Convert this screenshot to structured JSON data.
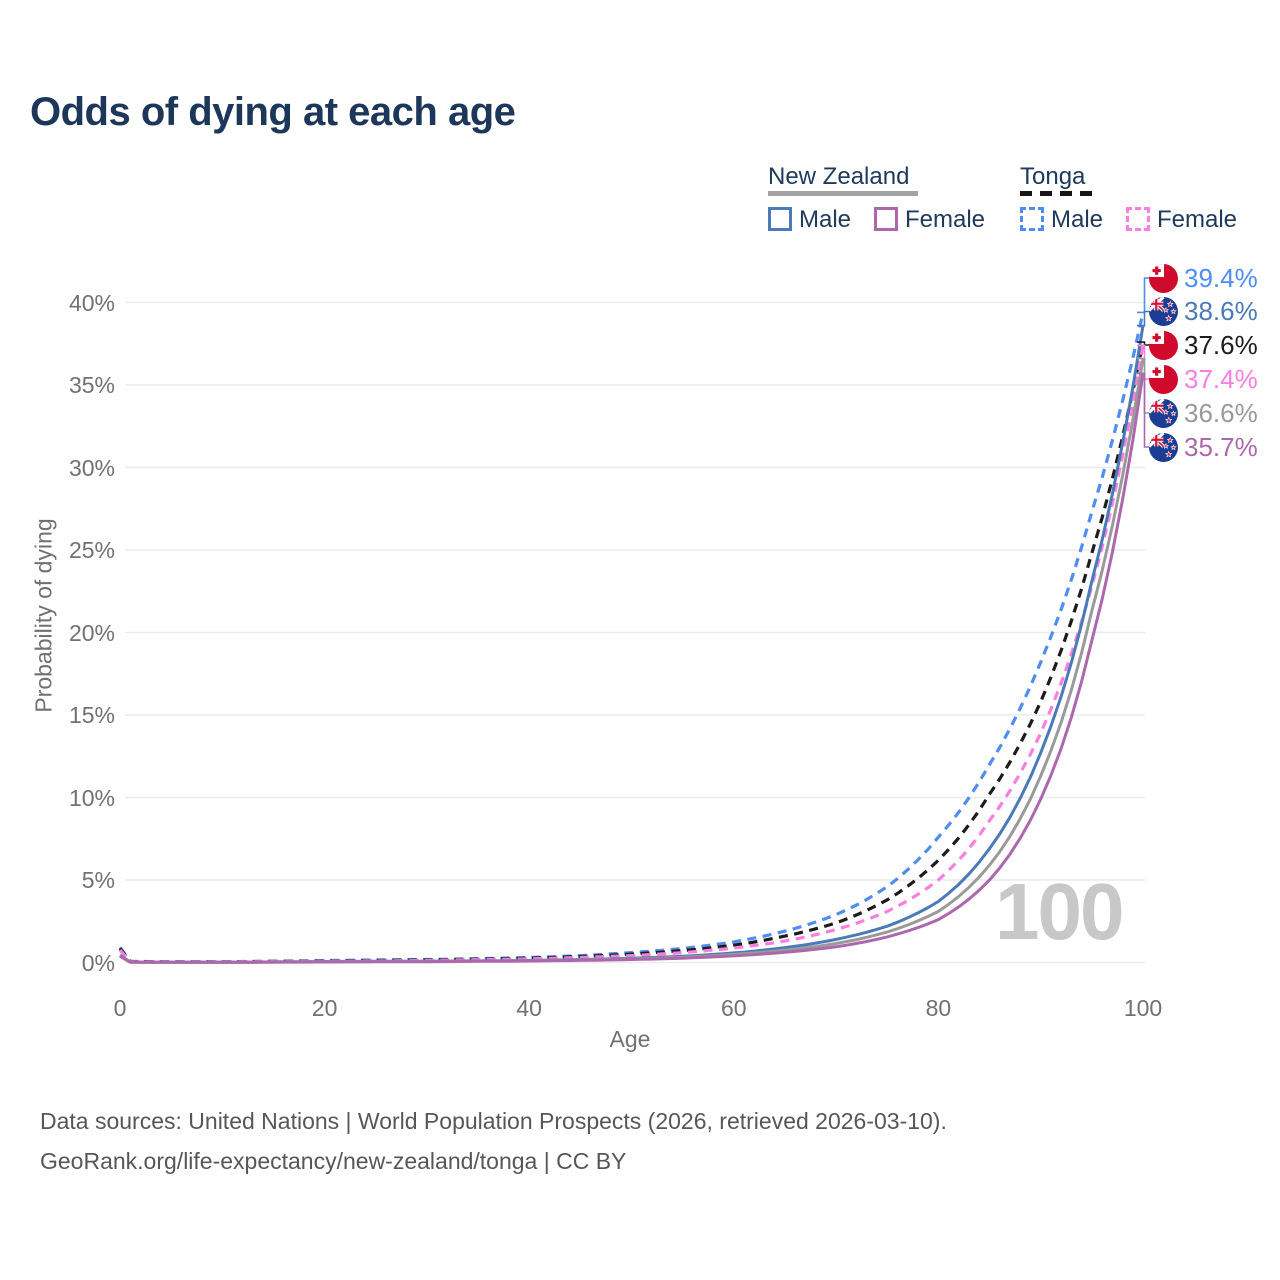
{
  "title": "Odds of dying at each age",
  "watermark": "100",
  "legend": {
    "groups": [
      {
        "name": "New Zealand",
        "line_style": "solid",
        "underline_color": "#a3a3a3",
        "items": [
          {
            "label": "Male",
            "color": "#4a7ab8"
          },
          {
            "label": "Female",
            "color": "#ad68ad"
          }
        ]
      },
      {
        "name": "Tonga",
        "line_style": "dashed",
        "underline_color": "#161616",
        "items": [
          {
            "label": "Male",
            "color": "#4f8df2"
          },
          {
            "label": "Female",
            "color": "#fc7ee0"
          }
        ]
      }
    ]
  },
  "footer": {
    "line1": "Data sources: United Nations | World Population Prospects (2026, retrieved 2026-03-10).",
    "line2": "GeoRank.org/life-expectancy/new-zealand/tonga | CC BY"
  },
  "chart_data": {
    "type": "line",
    "title": "Odds of dying at each age",
    "xlabel": "Age",
    "ylabel": "Probability of dying",
    "xlim": [
      0,
      100
    ],
    "ylim_percent": [
      0,
      40.5
    ],
    "x_ticks": [
      0,
      20,
      40,
      60,
      80,
      100
    ],
    "y_ticks_percent": [
      0,
      5,
      10,
      15,
      20,
      25,
      30,
      35,
      40
    ],
    "grid": "horizontal",
    "legend_position": "top-right",
    "ages": [
      0,
      1,
      5,
      10,
      15,
      20,
      25,
      30,
      35,
      40,
      45,
      50,
      55,
      60,
      65,
      70,
      75,
      80,
      85,
      90,
      95,
      100
    ],
    "series": [
      {
        "id": "tonga-male",
        "name": "Tonga Male",
        "country": "Tonga",
        "sex": "Male",
        "flag": "tonga",
        "color": "#4f8df2",
        "line_style": "dashed",
        "end_label": "39.4%",
        "end_value_percent": 39.4,
        "values_percent": [
          0.92,
          0.07,
          0.04,
          0.05,
          0.08,
          0.12,
          0.15,
          0.18,
          0.23,
          0.3,
          0.42,
          0.6,
          0.85,
          1.25,
          1.9,
          2.9,
          4.6,
          7.6,
          12.0,
          18.2,
          27.3,
          39.4
        ]
      },
      {
        "id": "tonga-total",
        "name": "Tonga",
        "country": "Tonga",
        "sex": "Both",
        "flag": "tonga",
        "color": "#1c1c1c",
        "line_style": "dashed",
        "end_label": "37.6%",
        "end_value_percent": 37.6,
        "values_percent": [
          0.85,
          0.06,
          0.04,
          0.04,
          0.07,
          0.1,
          0.13,
          0.16,
          0.2,
          0.26,
          0.36,
          0.51,
          0.72,
          1.05,
          1.6,
          2.4,
          3.8,
          6.2,
          10.2,
          15.8,
          24.8,
          37.6
        ]
      },
      {
        "id": "tonga-female",
        "name": "Tonga Female",
        "country": "Tonga",
        "sex": "Female",
        "flag": "tonga",
        "color": "#fc7ee0",
        "line_style": "dashed",
        "end_label": "37.4%",
        "end_value_percent": 37.4,
        "values_percent": [
          0.75,
          0.05,
          0.03,
          0.04,
          0.06,
          0.08,
          0.1,
          0.13,
          0.17,
          0.22,
          0.3,
          0.42,
          0.6,
          0.88,
          1.3,
          2.0,
          3.1,
          5.0,
          8.6,
          13.9,
          22.8,
          37.4
        ]
      },
      {
        "id": "nz-male",
        "name": "New Zealand Male",
        "country": "New Zealand",
        "sex": "Male",
        "flag": "nz",
        "color": "#4a7ab8",
        "line_style": "solid",
        "end_label": "38.6%",
        "end_value_percent": 38.6,
        "values_percent": [
          0.45,
          0.03,
          0.01,
          0.01,
          0.04,
          0.06,
          0.07,
          0.08,
          0.1,
          0.13,
          0.18,
          0.26,
          0.38,
          0.58,
          0.9,
          1.4,
          2.2,
          3.7,
          6.9,
          12.7,
          23.1,
          38.6
        ]
      },
      {
        "id": "nz-total",
        "name": "New Zealand",
        "country": "New Zealand",
        "sex": "Both",
        "flag": "nz",
        "color": "#9a9a9a",
        "line_style": "solid",
        "end_label": "36.6%",
        "end_value_percent": 36.6,
        "values_percent": [
          0.42,
          0.025,
          0.01,
          0.01,
          0.03,
          0.05,
          0.06,
          0.07,
          0.09,
          0.11,
          0.16,
          0.22,
          0.32,
          0.49,
          0.75,
          1.15,
          1.85,
          3.1,
          5.9,
          11.3,
          21.3,
          36.6
        ]
      },
      {
        "id": "nz-female",
        "name": "New Zealand Female",
        "country": "New Zealand",
        "sex": "Female",
        "flag": "nz",
        "color": "#ad68ad",
        "line_style": "solid",
        "end_label": "35.7%",
        "end_value_percent": 35.7,
        "values_percent": [
          0.38,
          0.02,
          0.01,
          0.01,
          0.02,
          0.03,
          0.04,
          0.05,
          0.07,
          0.09,
          0.13,
          0.18,
          0.26,
          0.4,
          0.62,
          0.95,
          1.55,
          2.6,
          5.0,
          9.9,
          19.5,
          35.7
        ]
      }
    ]
  }
}
